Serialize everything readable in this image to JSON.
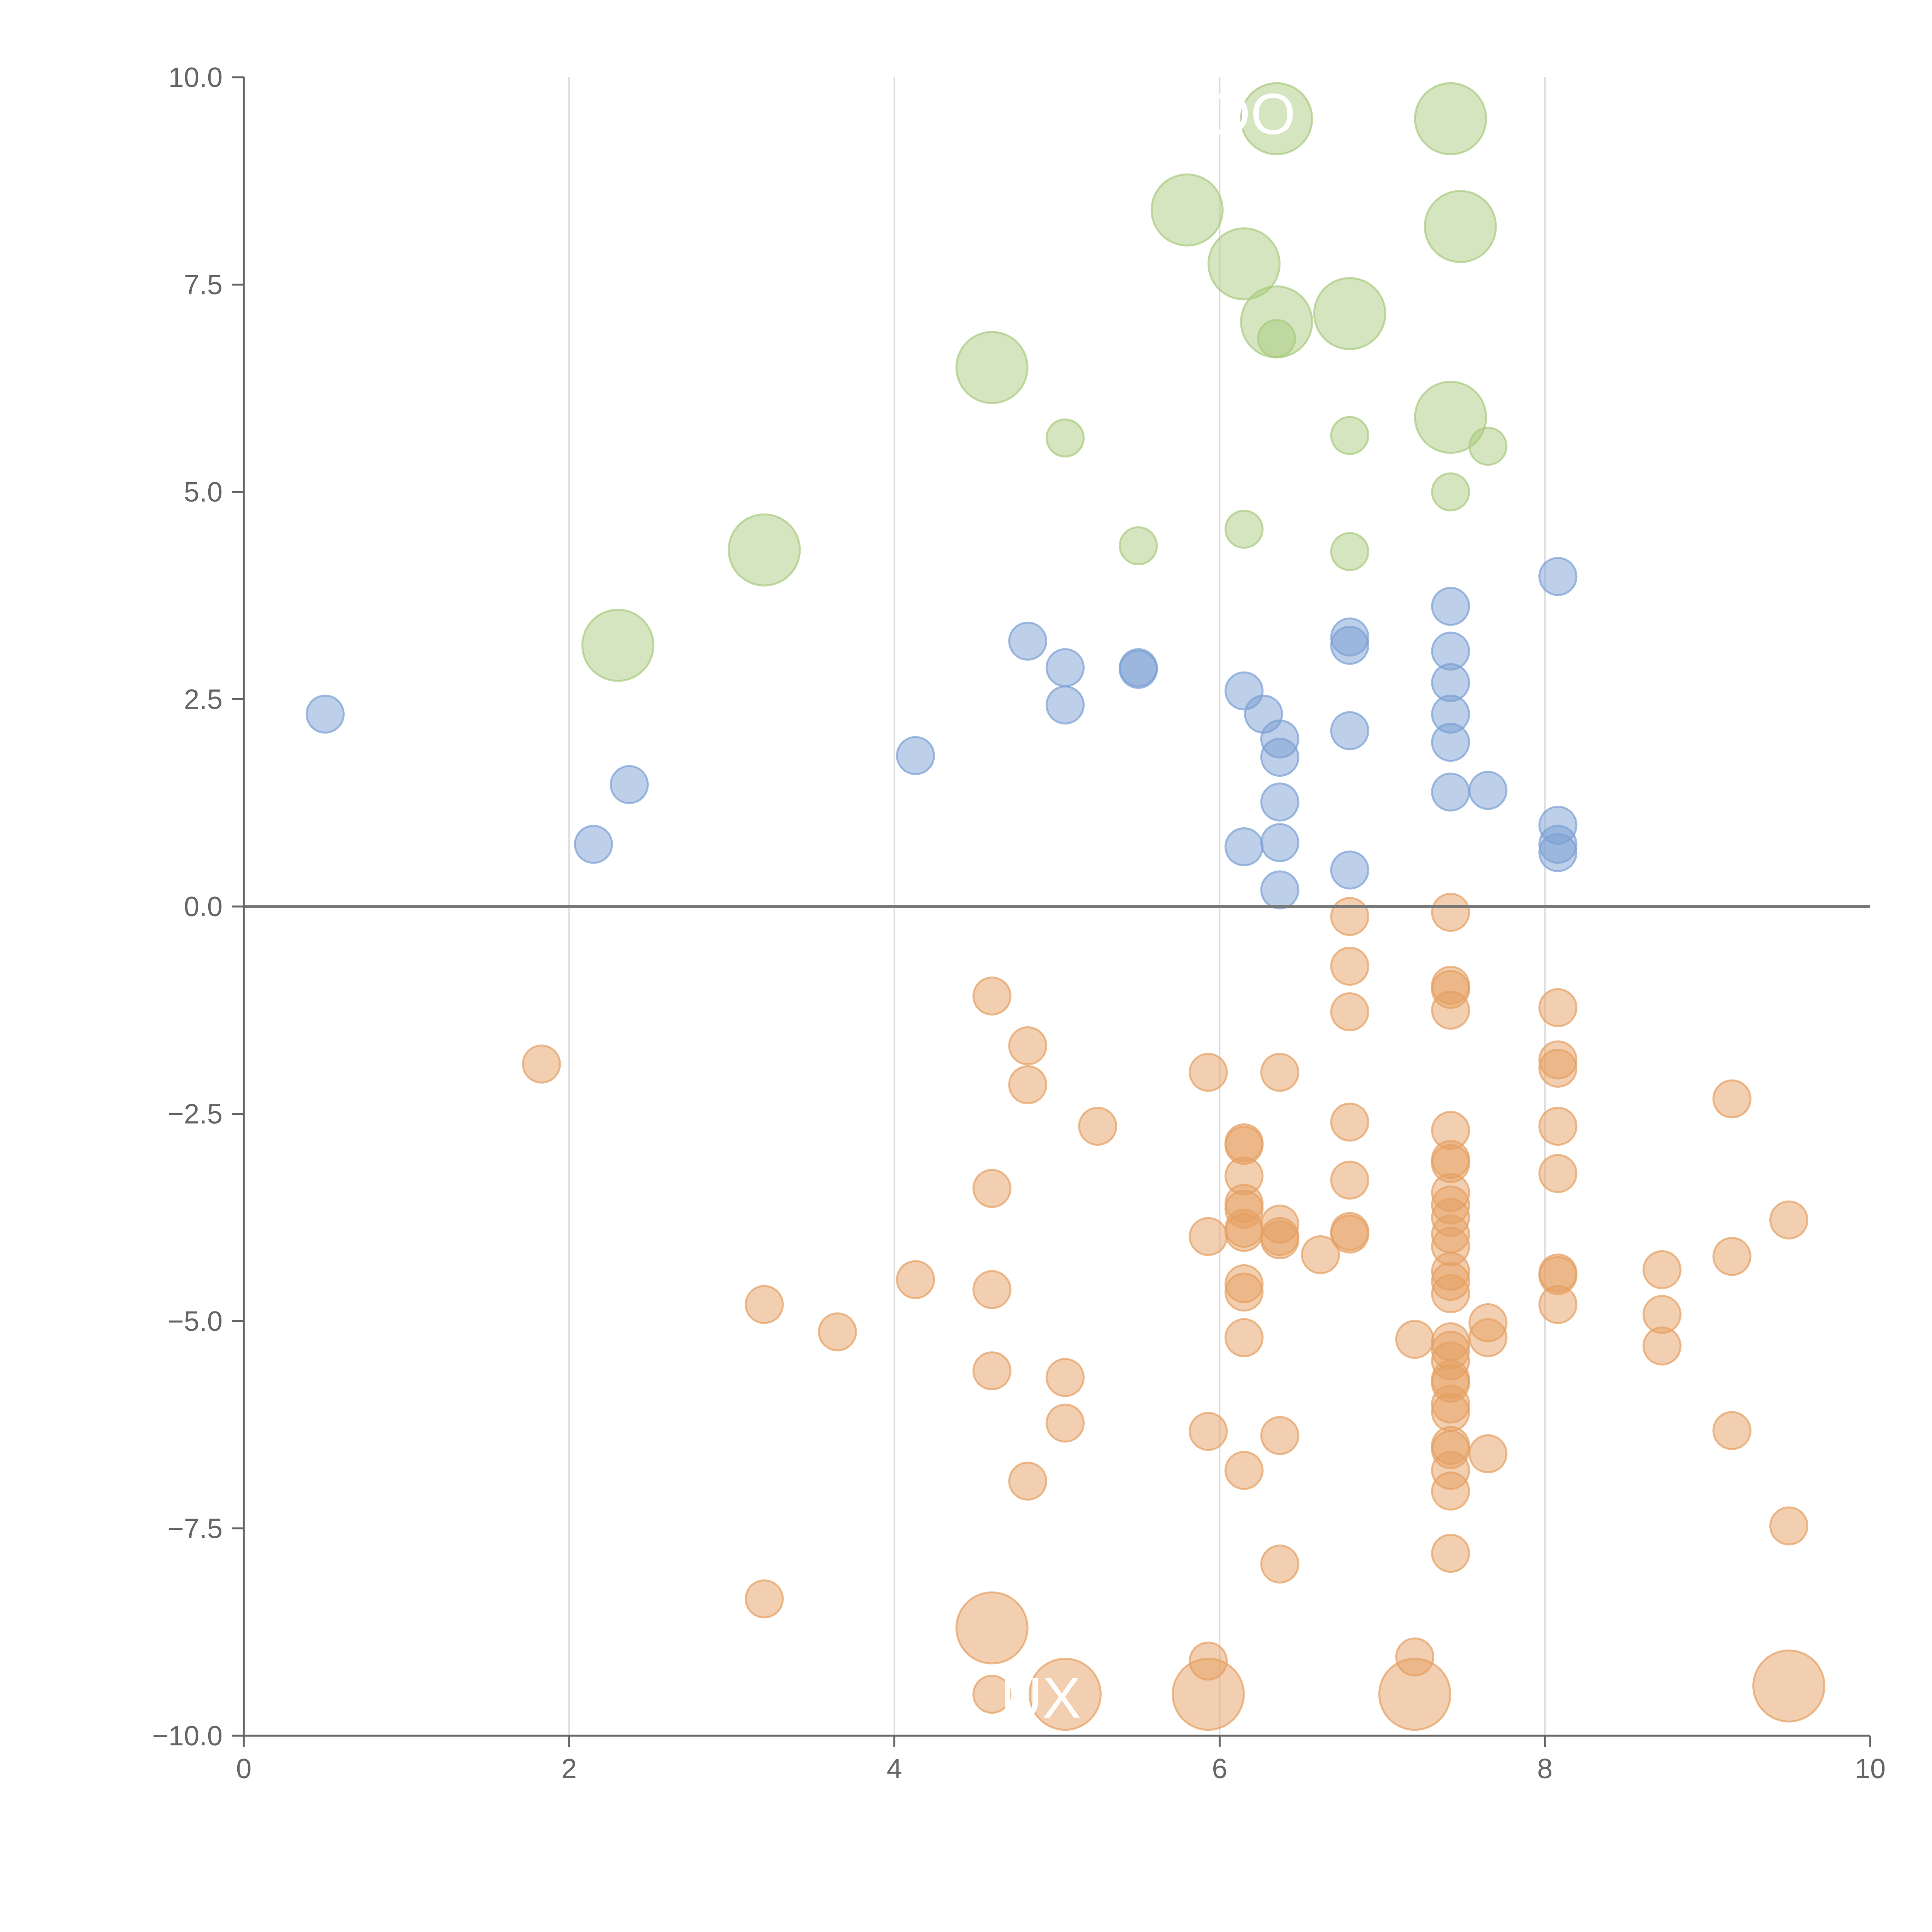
{
  "chart_data": {
    "type": "scatter",
    "title": "",
    "xlabel": "",
    "ylabel": "",
    "xlim": [
      0,
      10
    ],
    "ylim": [
      -10,
      10
    ],
    "grid": "vertical-only",
    "legend": "none",
    "x_ticks": [
      "0",
      "2",
      "4",
      "6",
      "8",
      "10"
    ],
    "y_ticks": [
      "10.0",
      "7.5",
      "5.0",
      "2.5",
      "0.0",
      "−2.5",
      "−5.0",
      "−7.5",
      "−10.0"
    ],
    "x_tick_values": [
      0,
      2,
      4,
      6,
      8,
      10
    ],
    "y_tick_values": [
      10,
      7.5,
      5,
      2.5,
      0,
      -2.5,
      -5,
      -7.5,
      -10
    ],
    "zero_line": true,
    "colors": {
      "green": "#a9cb7f",
      "blue": "#7b9fd4",
      "orange": "#e59f62",
      "axis": "#666666",
      "grid": "#dddddd"
    },
    "series": [
      {
        "color": "#a9cb7f",
        "points": [
          [
            6.35,
            9.5,
            "large"
          ],
          [
            7.42,
            9.5,
            "large"
          ],
          [
            5.8,
            8.4,
            "large"
          ],
          [
            7.48,
            8.2,
            "large"
          ],
          [
            6.15,
            7.75,
            "large"
          ],
          [
            6.35,
            7.05,
            "large"
          ],
          [
            6.8,
            7.15,
            "large"
          ],
          [
            6.35,
            6.85,
            "small"
          ],
          [
            4.6,
            6.5,
            "large"
          ],
          [
            5.05,
            5.65,
            "small"
          ],
          [
            6.8,
            5.68,
            "small"
          ],
          [
            7.42,
            5.9,
            "large"
          ],
          [
            7.65,
            5.55,
            "small"
          ],
          [
            7.42,
            5.0,
            "small"
          ],
          [
            3.2,
            4.3,
            "large"
          ],
          [
            5.5,
            4.35,
            "small"
          ],
          [
            6.15,
            4.55,
            "small"
          ],
          [
            6.8,
            4.28,
            "small"
          ],
          [
            2.3,
            3.15,
            "large"
          ]
        ]
      },
      {
        "color": "#7b9fd4",
        "points": [
          [
            0.5,
            2.32
          ],
          [
            2.15,
            0.75
          ],
          [
            2.37,
            1.47
          ],
          [
            4.13,
            1.82
          ],
          [
            4.82,
            3.2
          ],
          [
            5.05,
            2.88
          ],
          [
            5.05,
            2.43
          ],
          [
            5.5,
            2.88
          ],
          [
            5.5,
            2.86
          ],
          [
            6.15,
            2.6
          ],
          [
            6.15,
            0.72
          ],
          [
            6.27,
            2.32
          ],
          [
            6.37,
            2.02
          ],
          [
            6.37,
            1.8
          ],
          [
            6.37,
            1.26
          ],
          [
            6.37,
            0.77
          ],
          [
            6.37,
            0.2
          ],
          [
            6.8,
            3.25
          ],
          [
            6.8,
            3.15
          ],
          [
            6.8,
            2.12
          ],
          [
            6.8,
            0.44
          ],
          [
            7.42,
            3.62
          ],
          [
            7.42,
            3.08
          ],
          [
            7.42,
            2.7
          ],
          [
            7.42,
            2.32
          ],
          [
            7.42,
            1.98
          ],
          [
            7.42,
            1.38
          ],
          [
            7.65,
            1.4
          ],
          [
            8.08,
            3.98
          ],
          [
            8.08,
            0.98
          ],
          [
            8.08,
            0.75
          ],
          [
            8.08,
            0.65
          ]
        ]
      },
      {
        "color": "#e59f62",
        "points": [
          [
            1.83,
            -1.9
          ],
          [
            3.2,
            -4.8
          ],
          [
            3.2,
            -8.35
          ],
          [
            3.65,
            -5.13
          ],
          [
            4.13,
            -4.5
          ],
          [
            4.6,
            -1.08
          ],
          [
            4.6,
            -3.4
          ],
          [
            4.6,
            -4.62
          ],
          [
            4.6,
            -5.6
          ],
          [
            4.6,
            -8.7,
            "large"
          ],
          [
            4.6,
            -9.5
          ],
          [
            4.82,
            -1.68
          ],
          [
            4.82,
            -2.15
          ],
          [
            4.82,
            -6.93
          ],
          [
            5.05,
            -5.68
          ],
          [
            5.05,
            -6.23
          ],
          [
            5.05,
            -9.5,
            "large"
          ],
          [
            5.25,
            -2.65
          ],
          [
            5.93,
            -2.0
          ],
          [
            5.93,
            -3.98
          ],
          [
            5.93,
            -6.33
          ],
          [
            5.93,
            -9.1
          ],
          [
            5.93,
            -9.5,
            "large"
          ],
          [
            6.15,
            -2.85
          ],
          [
            6.15,
            -2.88
          ],
          [
            6.15,
            -3.25
          ],
          [
            6.15,
            -3.58
          ],
          [
            6.15,
            -3.65
          ],
          [
            6.15,
            -3.88
          ],
          [
            6.15,
            -3.93
          ],
          [
            6.15,
            -4.55
          ],
          [
            6.15,
            -4.65
          ],
          [
            6.15,
            -5.2
          ],
          [
            6.15,
            -6.8
          ],
          [
            6.37,
            -2.0
          ],
          [
            6.37,
            -3.83
          ],
          [
            6.37,
            -3.98
          ],
          [
            6.37,
            -4.02
          ],
          [
            6.37,
            -6.38
          ],
          [
            6.37,
            -7.93
          ],
          [
            6.62,
            -4.2
          ],
          [
            6.8,
            -0.12
          ],
          [
            6.8,
            -0.72
          ],
          [
            6.8,
            -1.27
          ],
          [
            6.8,
            -2.6
          ],
          [
            6.8,
            -3.3
          ],
          [
            6.8,
            -3.92
          ],
          [
            6.8,
            -3.95
          ],
          [
            7.2,
            -5.22
          ],
          [
            7.2,
            -9.05
          ],
          [
            7.2,
            -9.5,
            "large"
          ],
          [
            7.42,
            -0.07
          ],
          [
            7.42,
            -0.95
          ],
          [
            7.42,
            -1.0
          ],
          [
            7.42,
            -1.25
          ],
          [
            7.42,
            -2.7
          ],
          [
            7.42,
            -3.05
          ],
          [
            7.42,
            -3.1
          ],
          [
            7.42,
            -3.45
          ],
          [
            7.42,
            -3.6
          ],
          [
            7.42,
            -3.75
          ],
          [
            7.42,
            -3.95
          ],
          [
            7.42,
            -4.1
          ],
          [
            7.42,
            -4.4
          ],
          [
            7.42,
            -4.52
          ],
          [
            7.42,
            -4.67
          ],
          [
            7.42,
            -5.25
          ],
          [
            7.42,
            -5.35
          ],
          [
            7.42,
            -5.48
          ],
          [
            7.42,
            -5.7
          ],
          [
            7.42,
            -5.75
          ],
          [
            7.42,
            -6.0
          ],
          [
            7.42,
            -6.1
          ],
          [
            7.42,
            -6.5
          ],
          [
            7.42,
            -6.55
          ],
          [
            7.42,
            -6.8
          ],
          [
            7.42,
            -7.05
          ],
          [
            7.42,
            -7.8
          ],
          [
            7.65,
            -5.02
          ],
          [
            7.65,
            -5.2
          ],
          [
            7.65,
            -6.6
          ],
          [
            8.08,
            -1.22
          ],
          [
            8.08,
            -1.85
          ],
          [
            8.08,
            -1.95
          ],
          [
            8.08,
            -2.65
          ],
          [
            8.08,
            -3.22
          ],
          [
            8.08,
            -4.42
          ],
          [
            8.08,
            -4.45
          ],
          [
            8.08,
            -4.8
          ],
          [
            8.72,
            -4.38
          ],
          [
            8.72,
            -4.92
          ],
          [
            8.72,
            -5.3
          ],
          [
            9.15,
            -2.32
          ],
          [
            9.15,
            -4.22
          ],
          [
            9.15,
            -6.32
          ],
          [
            9.5,
            -3.78
          ],
          [
            9.5,
            -7.47
          ],
          [
            9.5,
            -9.4,
            "large"
          ]
        ]
      }
    ],
    "annotations": [
      {
        "text": "DO",
        "x": 6.2,
        "y": 9.55
      },
      {
        "text": "UX",
        "x": 4.9,
        "y": -9.55
      }
    ]
  }
}
